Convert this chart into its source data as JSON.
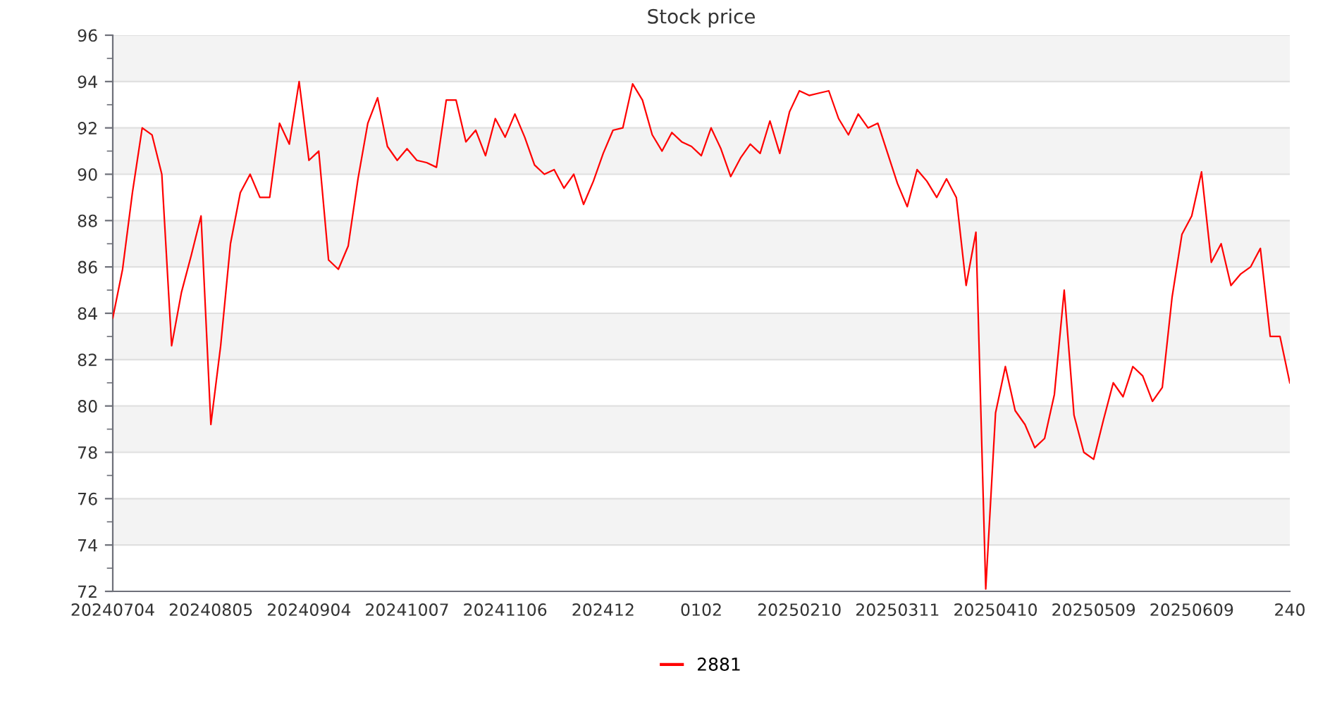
{
  "chart_data": {
    "type": "line",
    "title": "Stock price",
    "categories": [
      "20240704",
      null,
      null,
      null,
      null,
      null,
      null,
      null,
      null,
      null,
      "20240805",
      null,
      null,
      null,
      null,
      null,
      null,
      null,
      null,
      null,
      "20240904",
      null,
      null,
      null,
      null,
      null,
      null,
      null,
      null,
      null,
      "20241007",
      null,
      null,
      null,
      null,
      null,
      null,
      null,
      null,
      null,
      "20241106",
      null,
      null,
      null,
      null,
      null,
      null,
      null,
      null,
      null,
      "202412",
      null,
      null,
      null,
      null,
      null,
      null,
      null,
      null,
      null,
      "0102",
      null,
      null,
      null,
      null,
      null,
      null,
      null,
      null,
      null,
      "20250210",
      null,
      null,
      null,
      null,
      null,
      null,
      null,
      null,
      null,
      "20250311",
      null,
      null,
      null,
      null,
      null,
      null,
      null,
      null,
      null,
      "20250410",
      null,
      null,
      null,
      null,
      null,
      null,
      null,
      null,
      null,
      "20250509",
      null,
      null,
      null,
      null,
      null,
      null,
      null,
      null,
      null,
      "20250609",
      null,
      null,
      null,
      null,
      null,
      null,
      null,
      null,
      null,
      "240"
    ],
    "series": [
      {
        "name": "2881",
        "color": "#ff0000",
        "values": [
          83.8,
          85.9,
          89.2,
          92,
          91.7,
          90,
          82.6,
          84.9,
          86.5,
          88.2,
          79.2,
          82.6,
          87,
          89.2,
          90,
          89,
          89,
          92.2,
          91.3,
          94,
          90.6,
          91,
          86.3,
          85.9,
          86.9,
          89.8,
          92.2,
          93.3,
          91.2,
          90.6,
          91.1,
          90.6,
          90.5,
          90.3,
          93.2,
          93.2,
          91.4,
          91.9,
          90.8,
          92.4,
          91.6,
          92.6,
          91.6,
          90.4,
          90,
          90.2,
          89.4,
          90,
          88.7,
          89.7,
          90.9,
          91.9,
          92,
          93.9,
          93.2,
          91.7,
          91,
          91.8,
          91.4,
          91.2,
          90.8,
          92,
          91.1,
          89.9,
          90.7,
          91.3,
          90.9,
          92.3,
          90.9,
          92.7,
          93.6,
          93.4,
          93.5,
          93.6,
          92.4,
          91.7,
          92.6,
          92,
          92.2,
          90.9,
          89.6,
          88.6,
          90.2,
          89.7,
          89,
          89.8,
          89,
          85.2,
          87.5,
          72.1,
          79.7,
          81.7,
          79.8,
          79.2,
          78.2,
          78.6,
          80.5,
          85,
          79.6,
          78,
          77.7,
          79.4,
          81,
          80.4,
          81.7,
          81.3,
          80.2,
          80.8,
          84.7,
          87.4,
          88.2,
          90.1,
          86.2,
          87,
          85.2,
          85.7,
          86,
          86.8,
          83,
          83,
          81
        ]
      }
    ],
    "ylim": [
      72,
      96
    ],
    "yticks": [
      72,
      74,
      76,
      78,
      80,
      82,
      84,
      86,
      88,
      90,
      92,
      94,
      96
    ],
    "grid": "y",
    "legend": "bottom",
    "marker": "none",
    "line_style": "solid"
  }
}
